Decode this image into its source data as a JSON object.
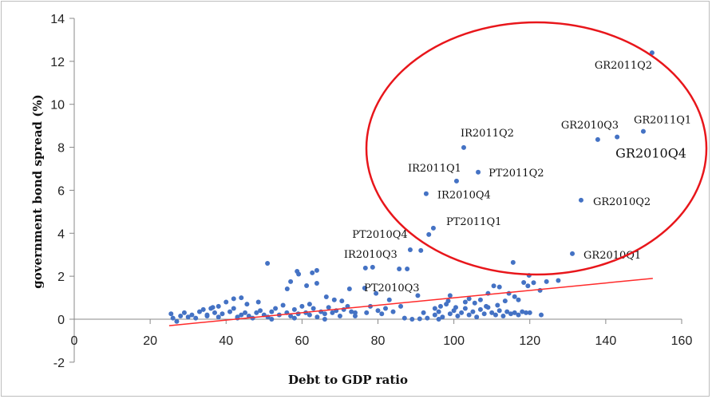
{
  "chart_data": {
    "type": "scatter",
    "title": "",
    "xlabel": "Debt to GDP ratio",
    "ylabel": "government bond  spread (%)",
    "xlim": [
      0,
      160
    ],
    "ylim": [
      -2,
      14
    ],
    "xticks": [
      0,
      20,
      40,
      60,
      80,
      100,
      120,
      140,
      160
    ],
    "yticks": [
      -2,
      0,
      2,
      4,
      6,
      8,
      10,
      12,
      14
    ],
    "grid": false,
    "colors": {
      "points": "#4472c4",
      "trend": "#ff2a2a",
      "ellipse": "#e8161b"
    },
    "trendline": {
      "x": [
        25,
        152.4
      ],
      "y": [
        -0.3,
        1.9
      ]
    },
    "labeled_points": [
      {
        "label": "GR2011Q2",
        "x": 152.2,
        "y": 12.4
      },
      {
        "label": "GR2011Q1",
        "x": 149.9,
        "y": 8.74
      },
      {
        "label": "GR2010Q4",
        "x": 143.0,
        "y": 8.48
      },
      {
        "label": "GR2010Q3",
        "x": 137.9,
        "y": 8.36
      },
      {
        "label": "GR2010Q2",
        "x": 133.5,
        "y": 5.54
      },
      {
        "label": "GR2010Q1",
        "x": 131.2,
        "y": 3.05
      },
      {
        "label": "IR2011Q2",
        "x": 102.6,
        "y": 7.99
      },
      {
        "label": "IR2011Q1",
        "x": 100.7,
        "y": 6.43
      },
      {
        "label": "PT2011Q2",
        "x": 106.4,
        "y": 6.84
      },
      {
        "label": "IR2010Q4",
        "x": 92.7,
        "y": 5.84
      },
      {
        "label": "PT2011Q1",
        "x": 94.6,
        "y": 4.24
      },
      {
        "label": "PT2010Q4",
        "x": 93.4,
        "y": 3.94
      },
      {
        "label": "IR2010Q3",
        "x": 78.6,
        "y": 2.42
      },
      {
        "label": "PT2010Q3",
        "x": 87.7,
        "y": 2.34
      }
    ],
    "points": [
      [
        88.5,
        3.23
      ],
      [
        91.3,
        3.2
      ],
      [
        115.6,
        2.64
      ],
      [
        119.8,
        2.04
      ],
      [
        124.4,
        1.75
      ],
      [
        122.7,
        1.34
      ],
      [
        118.4,
        1.71
      ],
      [
        119.5,
        1.55
      ],
      [
        127.5,
        1.8
      ],
      [
        121,
        1.7
      ],
      [
        50.9,
        2.6
      ],
      [
        58.7,
        2.23
      ],
      [
        59.1,
        2.1
      ],
      [
        62.7,
        2.16
      ],
      [
        63.9,
        2.27
      ],
      [
        57,
        1.75
      ],
      [
        56.1,
        1.41
      ],
      [
        61.2,
        1.56
      ],
      [
        63.9,
        1.67
      ],
      [
        66.4,
        1.04
      ],
      [
        72.5,
        1.41
      ],
      [
        76.5,
        1.45
      ],
      [
        76.7,
        2.38
      ],
      [
        85.6,
        2.34
      ],
      [
        79.5,
        1.2
      ],
      [
        83,
        0.9
      ],
      [
        86,
        0.6
      ],
      [
        90.5,
        1.1
      ],
      [
        99,
        1.1
      ],
      [
        103,
        0.8
      ],
      [
        110.5,
        1.55
      ],
      [
        112,
        1.5
      ],
      [
        114.5,
        1.2
      ],
      [
        116,
        1.05
      ],
      [
        117,
        0.9
      ],
      [
        109,
        1.2
      ],
      [
        104,
        0.95
      ],
      [
        98,
        0.7
      ],
      [
        95,
        0.5
      ],
      [
        92,
        0.3
      ],
      [
        25.5,
        0.25
      ],
      [
        26,
        0.05
      ],
      [
        27,
        -0.1
      ],
      [
        28,
        0.15
      ],
      [
        29,
        0.3
      ],
      [
        30,
        0.1
      ],
      [
        31,
        0.2
      ],
      [
        32,
        0.05
      ],
      [
        33,
        0.35
      ],
      [
        34,
        0.45
      ],
      [
        35,
        0.15
      ],
      [
        36,
        0.5
      ],
      [
        37,
        0.3
      ],
      [
        38,
        0.1
      ],
      [
        39,
        0.25
      ],
      [
        40,
        0.8
      ],
      [
        41,
        0.35
      ],
      [
        42,
        0.5
      ],
      [
        43,
        0.1
      ],
      [
        44,
        0.2
      ],
      [
        45,
        0.3
      ],
      [
        46,
        0.15
      ],
      [
        47,
        0.05
      ],
      [
        48,
        0.3
      ],
      [
        49,
        0.4
      ],
      [
        50,
        0.2
      ],
      [
        51,
        0.1
      ],
      [
        52,
        0.35
      ],
      [
        53,
        0.5
      ],
      [
        54,
        0.2
      ],
      [
        55,
        0.65
      ],
      [
        56,
        0.3
      ],
      [
        57,
        0.15
      ],
      [
        58,
        0.45
      ],
      [
        59,
        0.25
      ],
      [
        60,
        0.6
      ],
      [
        61,
        0.3
      ],
      [
        62,
        0.2
      ],
      [
        63,
        0.5
      ],
      [
        64,
        0.1
      ],
      [
        65,
        0.35
      ],
      [
        66,
        0.25
      ],
      [
        67,
        0.55
      ],
      [
        68,
        0.3
      ],
      [
        69,
        0.4
      ],
      [
        70,
        0.15
      ],
      [
        71,
        0.45
      ],
      [
        72,
        0.6
      ],
      [
        73,
        0.35
      ],
      [
        74,
        0.3
      ],
      [
        42,
        0.95
      ],
      [
        44,
        1.0
      ],
      [
        45.5,
        0.7
      ],
      [
        48.5,
        0.8
      ],
      [
        38,
        0.6
      ],
      [
        36.5,
        0.55
      ],
      [
        70.5,
        0.85
      ],
      [
        68.5,
        0.9
      ],
      [
        62,
        0.7
      ],
      [
        35,
        0.2
      ],
      [
        77,
        0.3
      ],
      [
        78,
        0.6
      ],
      [
        80,
        0.4
      ],
      [
        81,
        0.25
      ],
      [
        82,
        0.5
      ],
      [
        84,
        0.35
      ],
      [
        87,
        0.05
      ],
      [
        89,
        0.0
      ],
      [
        91,
        0.02
      ],
      [
        93,
        0.05
      ],
      [
        95,
        0.2
      ],
      [
        96,
        0.35
      ],
      [
        97,
        0.1
      ],
      [
        99,
        0.25
      ],
      [
        100,
        0.4
      ],
      [
        101,
        0.15
      ],
      [
        102,
        0.3
      ],
      [
        103,
        0.5
      ],
      [
        104,
        0.2
      ],
      [
        105,
        0.35
      ],
      [
        106,
        0.1
      ],
      [
        107,
        0.45
      ],
      [
        108,
        0.25
      ],
      [
        109,
        0.55
      ],
      [
        110,
        0.3
      ],
      [
        111,
        0.2
      ],
      [
        112,
        0.4
      ],
      [
        113,
        0.15
      ],
      [
        114,
        0.35
      ],
      [
        115,
        0.25
      ],
      [
        116,
        0.3
      ],
      [
        117,
        0.2
      ],
      [
        118,
        0.35
      ],
      [
        119,
        0.3
      ],
      [
        120,
        0.3
      ],
      [
        123,
        0.2
      ],
      [
        96.5,
        0.6
      ],
      [
        98.5,
        0.85
      ],
      [
        100.5,
        0.55
      ],
      [
        105.5,
        0.75
      ],
      [
        107,
        0.9
      ],
      [
        108.5,
        0.6
      ],
      [
        111.5,
        0.65
      ],
      [
        113.5,
        0.85
      ],
      [
        43,
        0.05
      ],
      [
        52,
        0.0
      ],
      [
        58,
        0.05
      ],
      [
        66,
        0.0
      ],
      [
        74,
        0.15
      ],
      [
        96,
        0.0
      ]
    ]
  }
}
